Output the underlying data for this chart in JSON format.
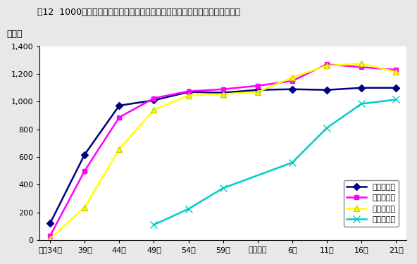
{
  "title": "図12  1000世帯当たり家事用耐久消費財の所有数量の推移（二人以上の世帯）",
  "ylabel": "（台）",
  "xlabel_ticks": [
    "昭和34年",
    "39年",
    "44年",
    "49年",
    "54年",
    "59年",
    "平成元年",
    "6年",
    "11年",
    "16年",
    "21年"
  ],
  "x_values": [
    0,
    1,
    2,
    3,
    4,
    5,
    6,
    7,
    8,
    9,
    10
  ],
  "series": [
    {
      "label": "電気洗濯機",
      "color": "#000080",
      "marker": "D",
      "markersize": 5,
      "markeredge": "#000080",
      "linewidth": 1.8,
      "values": [
        120,
        618,
        972,
        1010,
        1070,
        1065,
        1085,
        1090,
        1085,
        1100,
        1100
      ]
    },
    {
      "label": "電気冷蔵庫",
      "color": "#ff00ff",
      "marker": "s",
      "markersize": 5,
      "markeredge": "#ff00ff",
      "linewidth": 1.8,
      "values": [
        30,
        500,
        887,
        1025,
        1075,
        1090,
        1115,
        1150,
        1270,
        1250,
        1230
      ]
    },
    {
      "label": "電気掃除機",
      "color": "#ffff00",
      "marker": "^",
      "markersize": 6,
      "markeredge": "#cccc00",
      "linewidth": 1.8,
      "values": [
        10,
        235,
        657,
        940,
        1045,
        1055,
        1070,
        1175,
        1260,
        1275,
        1215
      ]
    },
    {
      "label": "電子レンジ",
      "color": "#00cccc",
      "marker": "x",
      "markersize": 7,
      "markeredge": "#00cccc",
      "linewidth": 1.8,
      "values": [
        null,
        null,
        null,
        110,
        225,
        375,
        null,
        560,
        810,
        985,
        1015
      ]
    }
  ],
  "ylim": [
    0,
    1400
  ],
  "yticks": [
    0,
    200,
    400,
    600,
    800,
    1000,
    1200,
    1400
  ],
  "background_color": "#e8e8e8",
  "plot_bg_color": "#ffffff",
  "tick_fontsize": 8,
  "title_fontsize": 9
}
